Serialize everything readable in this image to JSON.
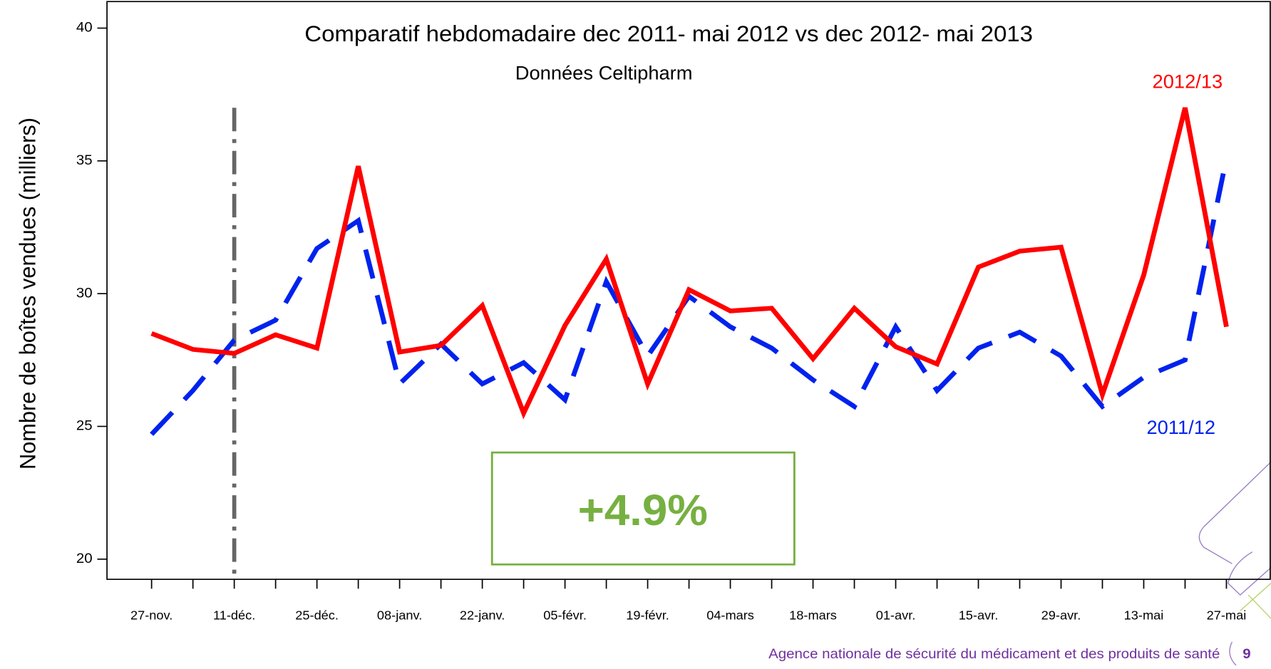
{
  "chart_data": {
    "type": "line",
    "title": "Comparatif hebdomadaire dec 2011- mai 2012 vs dec 2012- mai 2013",
    "subtitle": "Données Celtipharm",
    "y_label": "Nombre de boîtes vendues  (milliers)",
    "categories": [
      "27-nov.",
      null,
      "11-déc.",
      null,
      "25-déc.",
      null,
      "08-janv.",
      null,
      "22-janv.",
      null,
      "05-févr.",
      null,
      "19-févr.",
      null,
      "04-mars",
      null,
      "18-mars",
      null,
      "01-avr.",
      null,
      "15-avr.",
      null,
      "29-avr.",
      null,
      "13-mai",
      null,
      "27-mai"
    ],
    "series": [
      {
        "name": "2012/13",
        "color": "#ff0000",
        "dash": "solid",
        "values": [
          28.5,
          27.9,
          27.75,
          28.45,
          27.95,
          34.8,
          27.8,
          28.05,
          29.55,
          25.5,
          28.8,
          31.3,
          26.6,
          30.15,
          29.35,
          29.45,
          27.55,
          29.45,
          28.0,
          27.35,
          31.0,
          31.6,
          31.75,
          26.2,
          30.7,
          37.0,
          28.75
        ]
      },
      {
        "name": "2011/12",
        "color": "#0022ee",
        "dash": "dashed",
        "values": [
          24.7,
          26.35,
          28.25,
          29.0,
          31.7,
          32.75,
          26.6,
          28.1,
          26.6,
          27.4,
          26.0,
          30.45,
          27.65,
          29.9,
          28.75,
          27.95,
          26.75,
          25.75,
          28.75,
          26.35,
          27.95,
          28.55,
          27.65,
          25.75,
          26.85,
          27.5,
          35.1
        ]
      }
    ],
    "ylim": [
      19.24,
      41
    ],
    "yticks": [
      20,
      25,
      30,
      35,
      40
    ],
    "vline": {
      "category": "11-déc.",
      "ymax": 37
    },
    "annotation": "+4.9%",
    "footer": "Agence nationale de sécurité du médicament et des produits de santé",
    "page_number": "9"
  }
}
